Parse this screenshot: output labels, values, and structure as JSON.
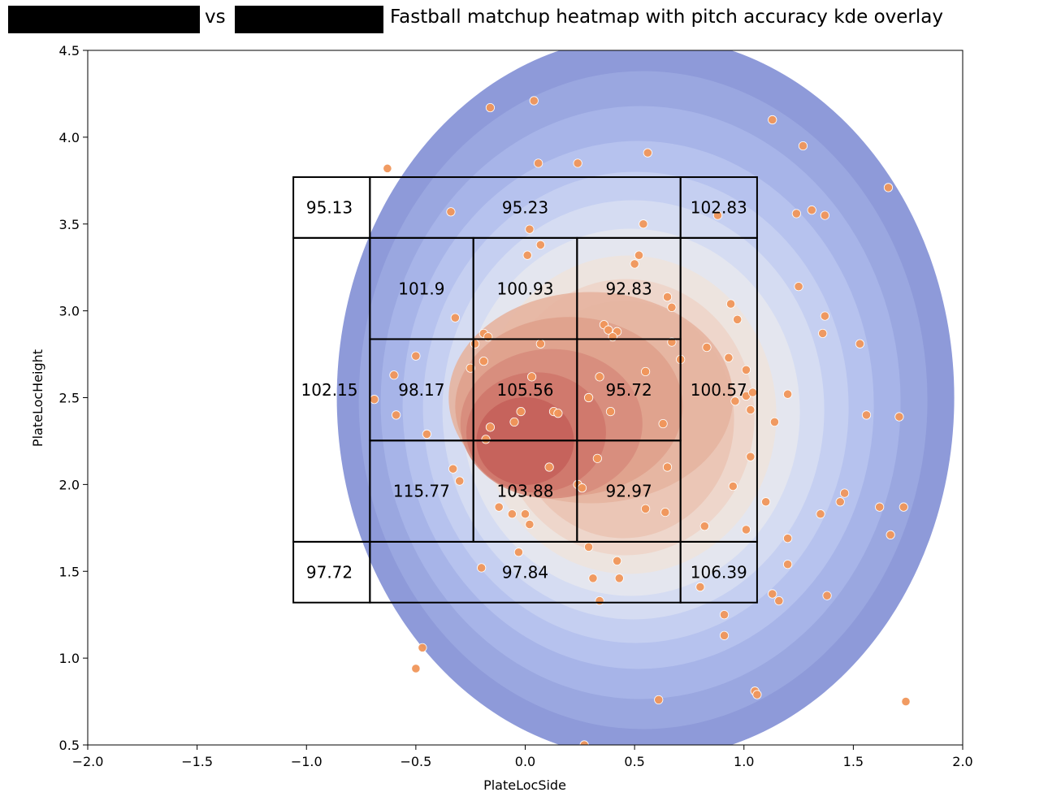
{
  "title": {
    "vs_text": "vs",
    "main_text": "Fastball matchup heatmap with pitch accuracy kde overlay",
    "redaction_color": "#000000"
  },
  "chart_data": {
    "type": "heatmap",
    "xlabel": "PlateLocSide",
    "ylabel": "PlateLocHeight",
    "xlim": [
      -2.0,
      2.0
    ],
    "ylim": [
      0.5,
      4.5
    ],
    "xticks": [
      -2.0,
      -1.5,
      -1.0,
      -0.5,
      0.0,
      0.5,
      1.0,
      1.5,
      2.0
    ],
    "xtick_labels": [
      "−2.0",
      "−1.5",
      "−1.0",
      "−0.5",
      "0.0",
      "0.5",
      "1.0",
      "1.5",
      "2.0"
    ],
    "yticks": [
      0.5,
      1.0,
      1.5,
      2.0,
      2.5,
      3.0,
      3.5,
      4.0,
      4.5
    ],
    "ytick_labels": [
      "0.5",
      "1.0",
      "1.5",
      "2.0",
      "2.5",
      "3.0",
      "3.5",
      "4.0",
      "4.5"
    ],
    "grid": false,
    "colors": {
      "kde_low": "#8e9ad9",
      "kde_high": "#c4615a",
      "points": "#f0965a",
      "box": "#000000"
    },
    "zones": [
      {
        "value": "95.13",
        "x": [
          -1.06,
          -0.71
        ],
        "y": [
          3.42,
          3.77
        ],
        "label_at": [
          -0.895,
          3.595
        ]
      },
      {
        "value": "95.23",
        "x": [
          -0.71,
          0.71
        ],
        "y": [
          3.42,
          3.77
        ],
        "label_at": [
          0.0,
          3.595
        ]
      },
      {
        "value": "102.83",
        "x": [
          0.71,
          1.06
        ],
        "y": [
          3.42,
          3.77
        ],
        "label_at": [
          0.885,
          3.595
        ]
      },
      {
        "value": "102.15",
        "x": [
          -1.06,
          -0.71
        ],
        "y": [
          1.67,
          3.42
        ],
        "label_at": [
          -0.895,
          2.545
        ]
      },
      {
        "value": "100.57",
        "x": [
          0.71,
          1.06
        ],
        "y": [
          1.67,
          3.42
        ],
        "label_at": [
          0.885,
          2.545
        ]
      },
      {
        "value": "97.72",
        "x": [
          -1.06,
          -0.71
        ],
        "y": [
          1.32,
          1.67
        ],
        "label_at": [
          -0.895,
          1.495
        ]
      },
      {
        "value": "97.84",
        "x": [
          -0.71,
          0.71
        ],
        "y": [
          1.32,
          1.67
        ],
        "label_at": [
          0.0,
          1.495
        ]
      },
      {
        "value": "106.39",
        "x": [
          0.71,
          1.06
        ],
        "y": [
          1.32,
          1.67
        ],
        "label_at": [
          0.885,
          1.495
        ]
      },
      {
        "value": "101.9",
        "x": [
          -0.71,
          -0.237
        ],
        "y": [
          2.837,
          3.42
        ],
        "label_at": [
          -0.474,
          3.128
        ]
      },
      {
        "value": "100.93",
        "x": [
          -0.237,
          0.237
        ],
        "y": [
          2.837,
          3.42
        ],
        "label_at": [
          0.0,
          3.128
        ]
      },
      {
        "value": "92.83",
        "x": [
          0.237,
          0.71
        ],
        "y": [
          2.837,
          3.42
        ],
        "label_at": [
          0.474,
          3.128
        ]
      },
      {
        "value": "98.17",
        "x": [
          -0.71,
          -0.237
        ],
        "y": [
          2.253,
          2.837
        ],
        "label_at": [
          -0.474,
          2.545
        ]
      },
      {
        "value": "105.56",
        "x": [
          -0.237,
          0.237
        ],
        "y": [
          2.253,
          2.837
        ],
        "label_at": [
          0.0,
          2.545
        ]
      },
      {
        "value": "95.72",
        "x": [
          0.237,
          0.71
        ],
        "y": [
          2.253,
          2.837
        ],
        "label_at": [
          0.474,
          2.545
        ]
      },
      {
        "value": "115.77",
        "x": [
          -0.71,
          -0.237
        ],
        "y": [
          1.67,
          2.253
        ],
        "label_at": [
          -0.474,
          1.962
        ]
      },
      {
        "value": "103.88",
        "x": [
          -0.237,
          0.237
        ],
        "y": [
          1.67,
          2.253
        ],
        "label_at": [
          0.0,
          1.962
        ]
      },
      {
        "value": "92.97",
        "x": [
          0.237,
          0.71
        ],
        "y": [
          1.67,
          2.253
        ],
        "label_at": [
          0.474,
          1.962
        ]
      }
    ],
    "pitches": [
      [
        -0.63,
        3.82
      ],
      [
        -0.16,
        4.17
      ],
      [
        0.04,
        4.21
      ],
      [
        0.06,
        3.85
      ],
      [
        0.24,
        3.85
      ],
      [
        0.56,
        3.91
      ],
      [
        1.13,
        4.1
      ],
      [
        1.27,
        3.95
      ],
      [
        1.66,
        3.71
      ],
      [
        0.88,
        3.55
      ],
      [
        1.24,
        3.56
      ],
      [
        1.31,
        3.58
      ],
      [
        1.37,
        3.55
      ],
      [
        -0.34,
        3.57
      ],
      [
        0.02,
        3.47
      ],
      [
        0.54,
        3.5
      ],
      [
        0.07,
        3.38
      ],
      [
        0.01,
        3.32
      ],
      [
        0.5,
        3.27
      ],
      [
        0.52,
        3.32
      ],
      [
        1.25,
        3.14
      ],
      [
        0.65,
        3.08
      ],
      [
        0.67,
        3.02
      ],
      [
        0.94,
        3.04
      ],
      [
        -0.32,
        2.96
      ],
      [
        0.36,
        2.92
      ],
      [
        0.38,
        2.89
      ],
      [
        0.42,
        2.88
      ],
      [
        0.4,
        2.85
      ],
      [
        -0.19,
        2.87
      ],
      [
        -0.17,
        2.85
      ],
      [
        -0.23,
        2.81
      ],
      [
        0.07,
        2.81
      ],
      [
        0.67,
        2.82
      ],
      [
        0.97,
        2.95
      ],
      [
        1.37,
        2.97
      ],
      [
        1.36,
        2.87
      ],
      [
        1.53,
        2.81
      ],
      [
        -0.5,
        2.74
      ],
      [
        -0.19,
        2.71
      ],
      [
        -0.25,
        2.67
      ],
      [
        0.71,
        2.72
      ],
      [
        0.83,
        2.79
      ],
      [
        0.93,
        2.73
      ],
      [
        1.01,
        2.66
      ],
      [
        -0.6,
        2.63
      ],
      [
        0.03,
        2.62
      ],
      [
        0.34,
        2.62
      ],
      [
        0.55,
        2.65
      ],
      [
        -0.69,
        2.49
      ],
      [
        0.29,
        2.5
      ],
      [
        0.96,
        2.48
      ],
      [
        1.01,
        2.51
      ],
      [
        1.04,
        2.53
      ],
      [
        1.2,
        2.52
      ],
      [
        -0.59,
        2.4
      ],
      [
        -0.02,
        2.42
      ],
      [
        0.13,
        2.42
      ],
      [
        0.15,
        2.41
      ],
      [
        0.39,
        2.42
      ],
      [
        0.63,
        2.35
      ],
      [
        1.03,
        2.43
      ],
      [
        1.14,
        2.36
      ],
      [
        1.56,
        2.4
      ],
      [
        1.71,
        2.39
      ],
      [
        -0.05,
        2.36
      ],
      [
        -0.16,
        2.33
      ],
      [
        -0.45,
        2.29
      ],
      [
        -0.18,
        2.26
      ],
      [
        1.03,
        2.16
      ],
      [
        0.33,
        2.15
      ],
      [
        0.65,
        2.1
      ],
      [
        0.11,
        2.1
      ],
      [
        -0.33,
        2.09
      ],
      [
        -0.3,
        2.02
      ],
      [
        0.24,
        2.0
      ],
      [
        0.26,
        1.98
      ],
      [
        0.95,
        1.99
      ],
      [
        -0.12,
        1.87
      ],
      [
        -0.06,
        1.83
      ],
      [
        0.0,
        1.83
      ],
      [
        0.02,
        1.77
      ],
      [
        0.55,
        1.86
      ],
      [
        0.64,
        1.84
      ],
      [
        1.1,
        1.9
      ],
      [
        1.35,
        1.83
      ],
      [
        1.44,
        1.9
      ],
      [
        1.46,
        1.95
      ],
      [
        1.62,
        1.87
      ],
      [
        1.73,
        1.87
      ],
      [
        0.82,
        1.76
      ],
      [
        1.01,
        1.74
      ],
      [
        1.67,
        1.71
      ],
      [
        1.2,
        1.69
      ],
      [
        0.29,
        1.64
      ],
      [
        -0.03,
        1.61
      ],
      [
        0.42,
        1.56
      ],
      [
        1.2,
        1.54
      ],
      [
        -0.2,
        1.52
      ],
      [
        0.31,
        1.46
      ],
      [
        0.43,
        1.46
      ],
      [
        0.8,
        1.41
      ],
      [
        1.13,
        1.37
      ],
      [
        1.16,
        1.33
      ],
      [
        1.38,
        1.36
      ],
      [
        0.34,
        1.33
      ],
      [
        0.91,
        1.25
      ],
      [
        0.91,
        1.13
      ],
      [
        -0.47,
        1.06
      ],
      [
        -0.5,
        0.94
      ],
      [
        0.61,
        0.76
      ],
      [
        1.74,
        0.75
      ],
      [
        1.05,
        0.81
      ],
      [
        1.06,
        0.79
      ],
      [
        0.27,
        0.5
      ]
    ]
  }
}
